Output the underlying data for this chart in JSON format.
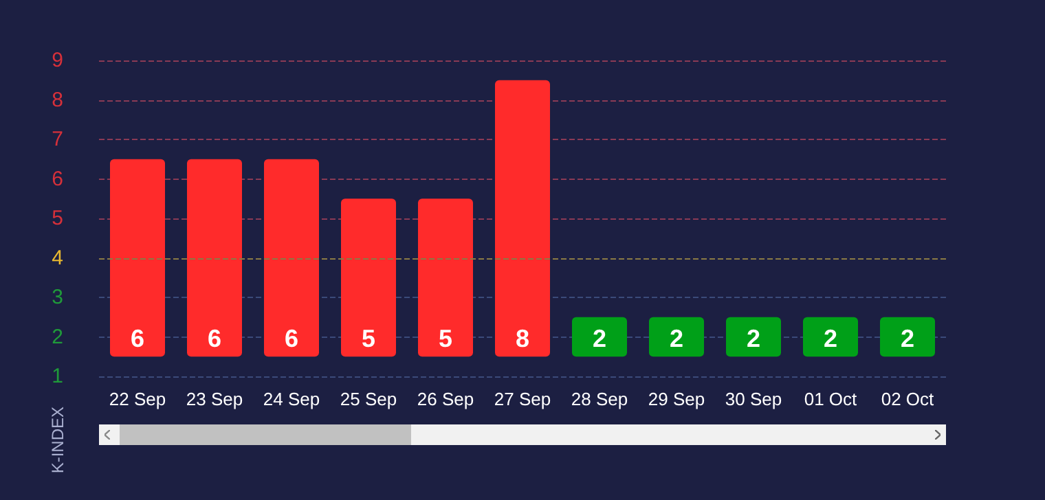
{
  "chart_data": {
    "type": "bar",
    "ylabel": "K-INDEX",
    "categories": [
      "22 Sep",
      "23 Sep",
      "24 Sep",
      "25 Sep",
      "26 Sep",
      "27 Sep",
      "28 Sep",
      "29 Sep",
      "30 Sep",
      "01 Oct",
      "02 Oct"
    ],
    "base": [
      1.5,
      1.5,
      1.5,
      1.5,
      1.5,
      1.5,
      1.5,
      1.5,
      1.5,
      1.5,
      1.5
    ],
    "values": [
      5,
      5,
      5,
      4,
      4,
      7,
      1,
      1,
      1,
      1,
      1
    ],
    "value_labels": [
      "6",
      "6",
      "6",
      "5",
      "5",
      "8",
      "2",
      "2",
      "2",
      "2",
      "2"
    ],
    "colors": [
      "#ff2b2b",
      "#ff2b2b",
      "#ff2b2b",
      "#ff2b2b",
      "#ff2b2b",
      "#ff2b2b",
      "#00a018",
      "#00a018",
      "#00a018",
      "#00a018",
      "#00a018"
    ],
    "ylim": [
      1,
      9
    ],
    "yticks": [
      1,
      2,
      3,
      4,
      5,
      6,
      7,
      8,
      9
    ],
    "grid": "y",
    "ref_lines": [
      {
        "axis": "y",
        "value": 4,
        "color": "#8a7a45",
        "line_style": "dashed"
      }
    ]
  }
}
